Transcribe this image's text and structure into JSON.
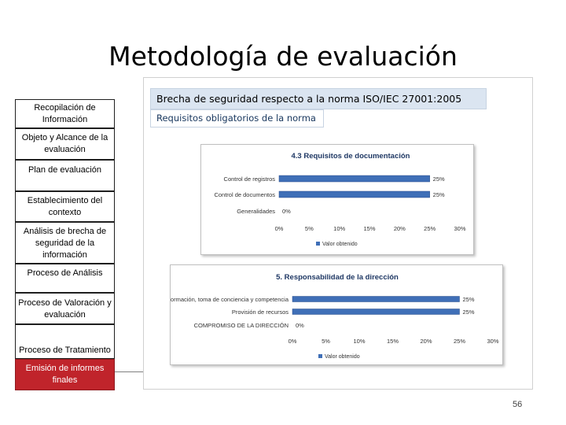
{
  "title": "Metodología de evaluación",
  "steps": [
    "Recopilación de Información",
    "Objeto y Alcance de la evaluación",
    "Plan de evaluación",
    "Establecimiento del contexto",
    "Análisis de brecha de seguridad de la información",
    "Proceso de Análisis",
    "Proceso de Valoración y evaluación",
    "Proceso de Tratamiento",
    "Emisión de informes finales"
  ],
  "active_step_index": 8,
  "header": {
    "main": "Brecha de seguridad respecto a la norma ISO/IEC 27001:2005",
    "sub": "Requisitos obligatorios de la norma"
  },
  "chart_data": [
    {
      "type": "bar",
      "orientation": "horizontal",
      "title": "4.3 Requisitos de documentación",
      "categories": [
        "Control de registros",
        "Control de documentos",
        "Generalidades"
      ],
      "series": [
        {
          "name": "Valor obtenido",
          "values": [
            25,
            25,
            0
          ]
        }
      ],
      "data_labels": [
        "25%",
        "25%",
        "0%"
      ],
      "xlim": [
        0,
        30
      ],
      "xticks": [
        "0%",
        "5%",
        "10%",
        "15%",
        "20%",
        "25%",
        "30%"
      ],
      "grid": false,
      "legend": "bottom",
      "bar_color": "#3f6fb7"
    },
    {
      "type": "bar",
      "orientation": "horizontal",
      "title": "5. Responsabilidad de la dirección",
      "categories": [
        "Formación, toma de conciencia y competencia",
        "Provisión de recursos",
        "COMPROMISO DE LA DIRECCIÓN"
      ],
      "series": [
        {
          "name": "Valor obtenido",
          "values": [
            25,
            25,
            0
          ]
        }
      ],
      "data_labels": [
        "25%",
        "25%",
        "0%"
      ],
      "xlim": [
        0,
        30
      ],
      "xticks": [
        "0%",
        "5%",
        "10%",
        "15%",
        "20%",
        "25%",
        "30%"
      ],
      "grid": false,
      "legend": "bottom",
      "bar_color": "#3f6fb7"
    }
  ],
  "page_number": "56"
}
